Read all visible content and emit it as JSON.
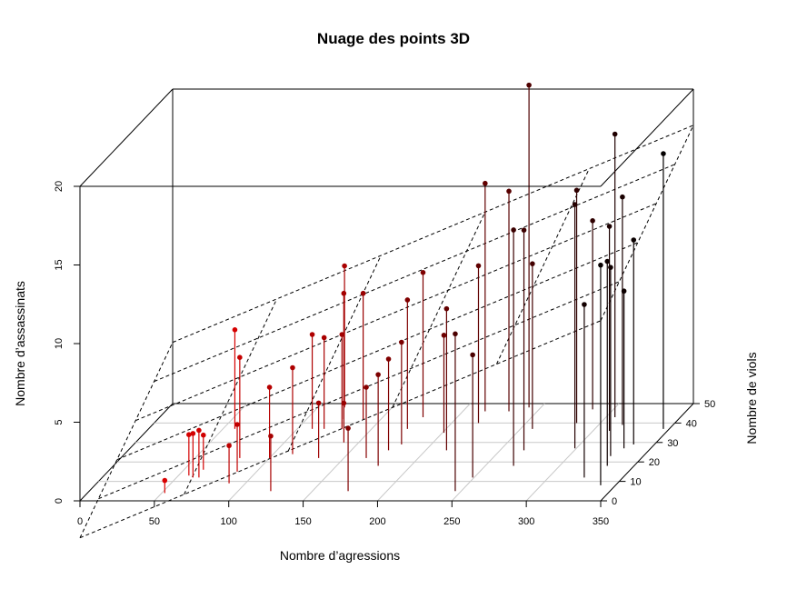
{
  "chart_data": {
    "type": "scatter3d",
    "title": "Nuage des points 3D",
    "xlabel": "Nombre d’agressions",
    "ylabel": "Nombre de viols",
    "zlabel": "Nombre d’assassinats",
    "xlim": [
      0,
      350
    ],
    "ylim": [
      0,
      50
    ],
    "zlim": [
      0,
      20
    ],
    "x_ticks": [
      0,
      50,
      100,
      150,
      200,
      250,
      300,
      350
    ],
    "y_ticks": [
      0,
      10,
      20,
      30,
      40,
      50
    ],
    "z_ticks": [
      0,
      5,
      10,
      15,
      20
    ],
    "grid": true,
    "regression_plane": true,
    "color_scale": [
      "#ff0000",
      "#000000"
    ],
    "points": [
      {
        "x": 52,
        "y": 4,
        "z": 0.8
      },
      {
        "x": 57,
        "y": 13,
        "z": 2.6
      },
      {
        "x": 61,
        "y": 12,
        "z": 2.8
      },
      {
        "x": 63,
        "y": 16,
        "z": 2.2
      },
      {
        "x": 65,
        "y": 12,
        "z": 3.0
      },
      {
        "x": 58,
        "y": 37,
        "z": 6.3
      },
      {
        "x": 87,
        "y": 15,
        "z": 3.0
      },
      {
        "x": 89,
        "y": 9,
        "z": 2.4
      },
      {
        "x": 80,
        "y": 22,
        "z": 6.4
      },
      {
        "x": 100,
        "y": 22,
        "z": 4.5
      },
      {
        "x": 122,
        "y": 5,
        "z": 3.5
      },
      {
        "x": 113,
        "y": 24,
        "z": 5.5
      },
      {
        "x": 110,
        "y": 37,
        "z": 6.0
      },
      {
        "x": 118,
        "y": 37,
        "z": 5.8
      },
      {
        "x": 118,
        "y": 48,
        "z": 9.0
      },
      {
        "x": 133,
        "y": 22,
        "z": 3.5
      },
      {
        "x": 130,
        "y": 37,
        "z": 6.0
      },
      {
        "x": 125,
        "y": 42,
        "z": 8.0
      },
      {
        "x": 138,
        "y": 42,
        "z": 8.0
      },
      {
        "x": 140,
        "y": 30,
        "z": 2.5
      },
      {
        "x": 165,
        "y": 22,
        "z": 4.5
      },
      {
        "x": 174,
        "y": 5,
        "z": 4.0
      },
      {
        "x": 175,
        "y": 26,
        "z": 5.8
      },
      {
        "x": 178,
        "y": 18,
        "z": 5.8
      },
      {
        "x": 174,
        "y": 37,
        "z": 8.2
      },
      {
        "x": 177,
        "y": 43,
        "z": 9.2
      },
      {
        "x": 180,
        "y": 29,
        "z": 6.5
      },
      {
        "x": 201,
        "y": 35,
        "z": 6.2
      },
      {
        "x": 214,
        "y": 26,
        "z": 9.0
      },
      {
        "x": 218,
        "y": 40,
        "z": 10.0
      },
      {
        "x": 215,
        "y": 46,
        "z": 14.5
      },
      {
        "x": 231,
        "y": 46,
        "z": 14.0
      },
      {
        "x": 242,
        "y": 48,
        "z": 20.5
      },
      {
        "x": 249,
        "y": 12,
        "z": 7.8
      },
      {
        "x": 246,
        "y": 5,
        "z": 10.0
      },
      {
        "x": 258,
        "y": 37,
        "z": 10.5
      },
      {
        "x": 266,
        "y": 26,
        "z": 14.0
      },
      {
        "x": 269,
        "y": 18,
        "z": 15.0
      },
      {
        "x": 284,
        "y": 40,
        "z": 14.8
      },
      {
        "x": 286,
        "y": 47,
        "z": 12.0
      },
      {
        "x": 299,
        "y": 27,
        "z": 15.5
      },
      {
        "x": 306,
        "y": 43,
        "z": 18.0
      },
      {
        "x": 311,
        "y": 36,
        "z": 13.0
      },
      {
        "x": 316,
        "y": 39,
        "z": 14.5
      },
      {
        "x": 324,
        "y": 12,
        "z": 11.0
      },
      {
        "x": 328,
        "y": 23,
        "z": 12.0
      },
      {
        "x": 332,
        "y": 27,
        "z": 10.0
      },
      {
        "x": 332,
        "y": 18,
        "z": 13.0
      },
      {
        "x": 336,
        "y": 29,
        "z": 13.0
      },
      {
        "x": 340,
        "y": 8,
        "z": 14.0
      },
      {
        "x": 346,
        "y": 37,
        "z": 17.5
      }
    ]
  }
}
